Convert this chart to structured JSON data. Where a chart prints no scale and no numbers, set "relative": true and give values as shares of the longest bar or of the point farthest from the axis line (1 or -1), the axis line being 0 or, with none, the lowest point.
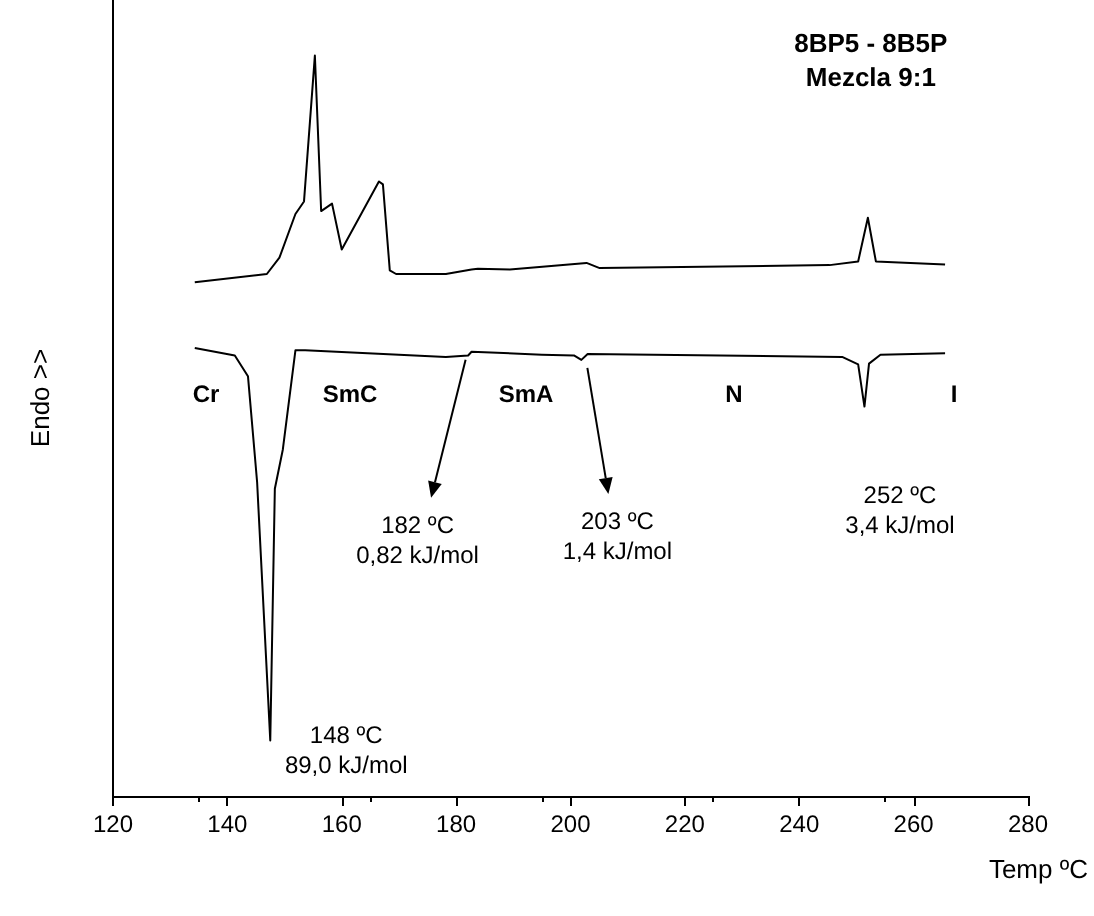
{
  "chart_data": {
    "type": "line",
    "relative": true,
    "title": "8BP5 - 8B5P\nMezcla 9:1",
    "xlabel": "Temp ºC",
    "ylabel": "Endo >>",
    "xlim": [
      120,
      280
    ],
    "xticks": [
      120,
      140,
      160,
      180,
      200,
      220,
      240,
      260,
      280
    ],
    "grid": false,
    "marker": "none",
    "line_style": "solid",
    "series": [
      {
        "color": "#000000",
        "x": [
          134.3,
          146.9,
          149.1,
          151.9,
          153.4,
          155.3,
          156.4,
          158.3,
          160.0,
          166.5,
          167.2,
          168.4,
          169.5,
          178.2,
          182.7,
          183.8,
          189.4,
          202.8,
          205.1,
          245.3,
          250.3,
          252.0,
          253.4,
          265.5
        ],
        "values": [
          0.694,
          0.705,
          0.727,
          0.786,
          0.803,
          1.0,
          0.79,
          0.8,
          0.738,
          0.83,
          0.826,
          0.71,
          0.705,
          0.705,
          0.711,
          0.712,
          0.711,
          0.72,
          0.713,
          0.717,
          0.722,
          0.781,
          0.722,
          0.718
        ]
      },
      {
        "color": "#000000",
        "x": [
          134.3,
          141.3,
          143.6,
          145.2,
          147.5,
          148.3,
          149.7,
          151.9,
          153.6,
          178.2,
          182.1,
          182.7,
          195.0,
          200.6,
          201.9,
          203.0,
          247.5,
          250.3,
          251.4,
          252.2,
          254.2,
          265.5
        ],
        "values": [
          0.605,
          0.595,
          0.567,
          0.424,
          0.075,
          0.415,
          0.468,
          0.602,
          0.602,
          0.593,
          0.595,
          0.6,
          0.596,
          0.595,
          0.589,
          0.597,
          0.593,
          0.583,
          0.526,
          0.584,
          0.596,
          0.598
        ]
      }
    ],
    "annotations": [
      "Cr",
      "SmC",
      "SmA",
      "N",
      "I",
      {
        "text": "148 ºC\n89,0 kJ/mol",
        "x": 147.5,
        "y": 0.075
      },
      {
        "text": "182 ºC\n0,82 kJ/mol",
        "x": 182.7,
        "y": 0.6
      },
      {
        "text": "203 ºC\n1,4 kJ/mol",
        "x": 201.9,
        "y": 0.589
      },
      "252 ºC\n3,4 kJ/mol"
    ]
  }
}
